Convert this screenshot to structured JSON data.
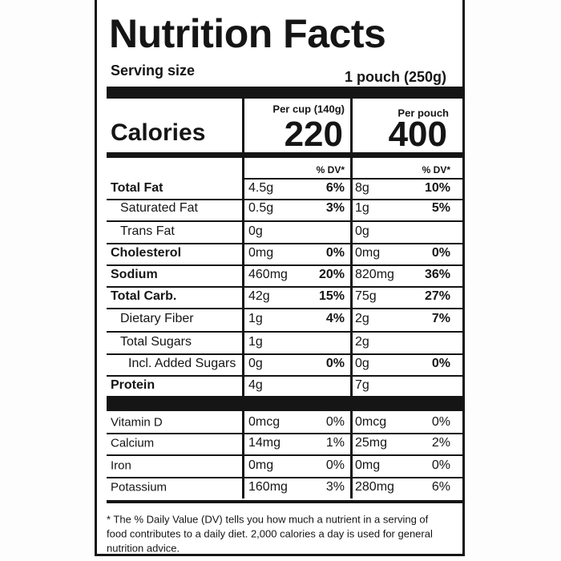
{
  "title": "Nutrition Facts",
  "serving": {
    "label": "Serving size",
    "value": "1 pouch (250g)"
  },
  "calories_label": "Calories",
  "columns": [
    {
      "header": "Per cup (140g)",
      "calories": "220",
      "dv_header": "% DV*"
    },
    {
      "header": "Per pouch",
      "calories": "400",
      "dv_header": "% DV*"
    }
  ],
  "nutrients": [
    {
      "name": "Total Fat",
      "values": [
        {
          "amount": "4.5g",
          "dv": "6%"
        },
        {
          "amount": "8g",
          "dv": "10%"
        }
      ]
    },
    {
      "name": "Saturated Fat",
      "values": [
        {
          "amount": "0.5g",
          "dv": "3%"
        },
        {
          "amount": "1g",
          "dv": "5%"
        }
      ]
    },
    {
      "name": "Trans Fat",
      "values": [
        {
          "amount": "0g"
        },
        {
          "amount": "0g"
        }
      ]
    },
    {
      "name": "Cholesterol",
      "values": [
        {
          "amount": "0mg",
          "dv": "0%"
        },
        {
          "amount": "0mg",
          "dv": "0%"
        }
      ]
    },
    {
      "name": "Sodium",
      "values": [
        {
          "amount": "460mg",
          "dv": "20%"
        },
        {
          "amount": "820mg",
          "dv": "36%"
        }
      ]
    },
    {
      "name": "Total Carb.",
      "values": [
        {
          "amount": "42g",
          "dv": "15%"
        },
        {
          "amount": "75g",
          "dv": "27%"
        }
      ]
    },
    {
      "name": "Dietary Fiber",
      "values": [
        {
          "amount": "1g",
          "dv": "4%"
        },
        {
          "amount": "2g",
          "dv": "7%"
        }
      ]
    },
    {
      "name": "Total Sugars",
      "values": [
        {
          "amount": "1g"
        },
        {
          "amount": "2g"
        }
      ]
    },
    {
      "name": "Incl. Added Sugars",
      "values": [
        {
          "amount": "0g",
          "dv": "0%"
        },
        {
          "amount": "0g",
          "dv": "0%"
        }
      ]
    },
    {
      "name": "Protein",
      "values": [
        {
          "amount": "4g"
        },
        {
          "amount": "7g"
        }
      ]
    }
  ],
  "vitamins": [
    {
      "name": "Vitamin D",
      "values": [
        {
          "amount": "0mcg",
          "dv": "0%"
        },
        {
          "amount": "0mcg",
          "dv": "0%"
        }
      ]
    },
    {
      "name": "Calcium",
      "values": [
        {
          "amount": "14mg",
          "dv": "1%"
        },
        {
          "amount": "25mg",
          "dv": "2%"
        }
      ]
    },
    {
      "name": "Iron",
      "values": [
        {
          "amount": "0mg",
          "dv": "0%"
        },
        {
          "amount": "0mg",
          "dv": "0%"
        }
      ]
    },
    {
      "name": "Potassium",
      "values": [
        {
          "amount": "160mg",
          "dv": "3%"
        },
        {
          "amount": "280mg",
          "dv": "6%"
        }
      ]
    }
  ],
  "footnote": [
    "* The % Daily Value (DV) tells you how much a nutrient in a serving of",
    "food contributes to a daily diet. 2,000 calories a day is used for general",
    "nutrition advice."
  ]
}
